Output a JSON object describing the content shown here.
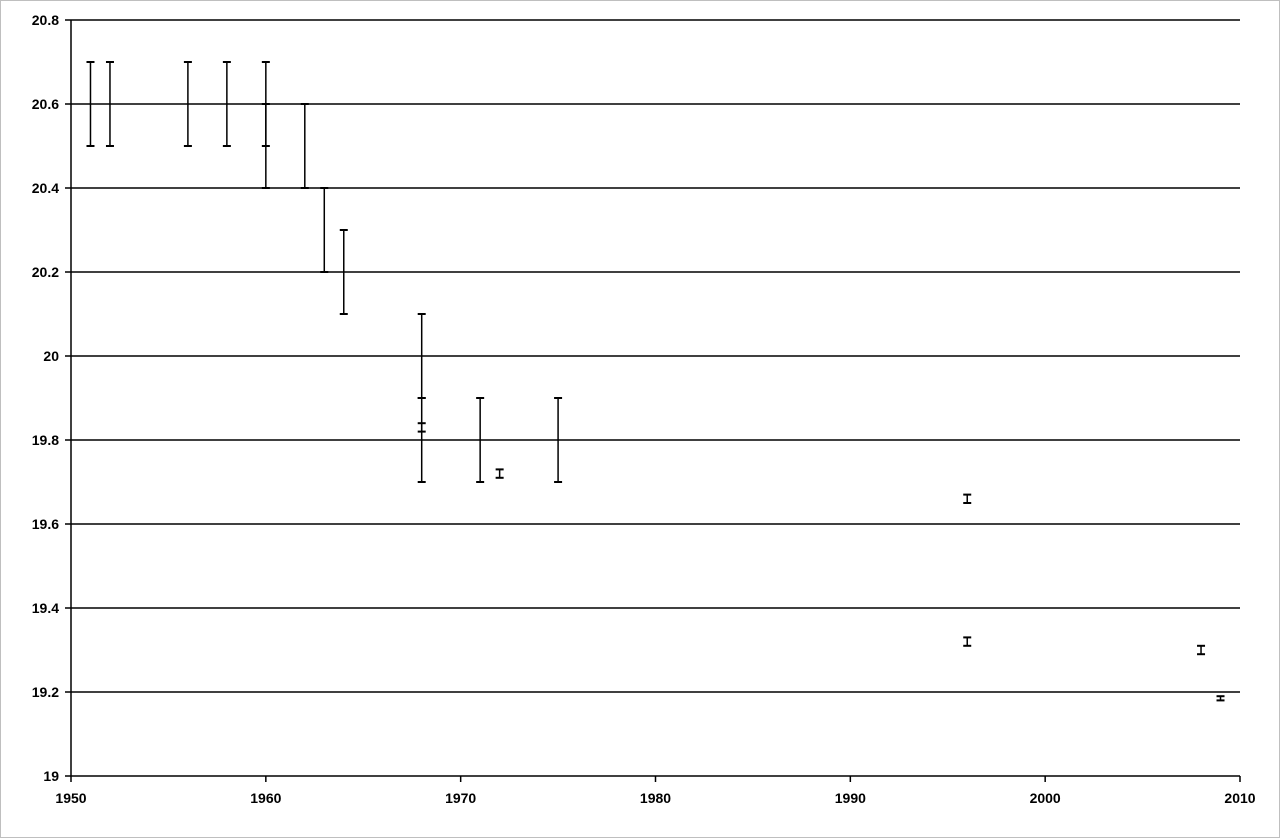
{
  "chart_data": {
    "type": "scatter",
    "error_bars": true,
    "title": "",
    "xlabel": "",
    "ylabel": "",
    "xlim": [
      1950,
      2010
    ],
    "ylim": [
      19,
      20.8
    ],
    "grid": {
      "horizontal": true,
      "vertical": false
    },
    "legend": "none",
    "x_ticks": [
      "1950",
      "1960",
      "1970",
      "1980",
      "1990",
      "2000",
      "2010"
    ],
    "y_ticks": [
      "19",
      "19.2",
      "19.4",
      "19.6",
      "19.8",
      "20",
      "20.2",
      "20.4",
      "20.6",
      "20.8"
    ],
    "points": [
      {
        "x": 1951,
        "low": 20.5,
        "high": 20.7
      },
      {
        "x": 1952,
        "low": 20.5,
        "high": 20.7
      },
      {
        "x": 1956,
        "low": 20.5,
        "high": 20.7
      },
      {
        "x": 1958,
        "low": 20.5,
        "high": 20.7
      },
      {
        "x": 1960,
        "low": 20.5,
        "high": 20.7
      },
      {
        "x": 1960,
        "low": 20.4,
        "high": 20.6
      },
      {
        "x": 1962,
        "low": 20.4,
        "high": 20.6
      },
      {
        "x": 1963,
        "low": 20.2,
        "high": 20.4
      },
      {
        "x": 1964,
        "low": 20.1,
        "high": 20.3
      },
      {
        "x": 1968,
        "low": 19.9,
        "high": 20.1
      },
      {
        "x": 1968,
        "low": 19.7,
        "high": 19.9
      },
      {
        "x": 1968,
        "low": 19.82,
        "high": 19.84
      },
      {
        "x": 1971,
        "low": 19.7,
        "high": 19.9
      },
      {
        "x": 1972,
        "low": 19.71,
        "high": 19.73
      },
      {
        "x": 1975,
        "low": 19.7,
        "high": 19.9
      },
      {
        "x": 1996,
        "low": 19.65,
        "high": 19.67
      },
      {
        "x": 1996,
        "low": 19.31,
        "high": 19.33
      },
      {
        "x": 2008,
        "low": 19.29,
        "high": 19.31
      },
      {
        "x": 2009,
        "low": 19.18,
        "high": 19.19
      }
    ],
    "colors": {
      "grid": "#000000",
      "bars": "#000000",
      "border": "#bfbfbf"
    }
  }
}
